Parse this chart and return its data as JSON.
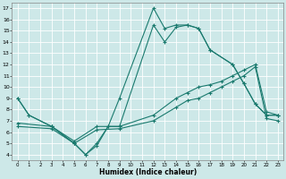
{
  "bg_color": "#cde8e8",
  "grid_color": "#b0d8d8",
  "line_color": "#1a7a6e",
  "xlim": [
    -0.5,
    23.5
  ],
  "ylim": [
    3.5,
    17.5
  ],
  "xticks": [
    0,
    1,
    2,
    3,
    4,
    5,
    6,
    7,
    8,
    9,
    10,
    11,
    12,
    13,
    14,
    15,
    16,
    17,
    18,
    19,
    20,
    21,
    22,
    23
  ],
  "yticks": [
    4,
    5,
    6,
    7,
    8,
    9,
    10,
    11,
    12,
    13,
    14,
    15,
    16,
    17
  ],
  "xlabel": "Humidex (Indice chaleur)",
  "lines": [
    {
      "x": [
        0,
        1,
        3,
        5,
        6,
        7,
        8,
        9,
        12,
        13,
        14,
        15,
        16,
        17,
        19,
        20,
        21,
        22,
        23
      ],
      "y": [
        9,
        7.5,
        6.5,
        5.0,
        4.0,
        4.8,
        6.5,
        9.0,
        17.0,
        15.2,
        15.5,
        15.5,
        15.2,
        13.3,
        12.0,
        10.3,
        8.5,
        7.5,
        7.5
      ]
    },
    {
      "x": [
        0,
        1,
        3,
        5,
        6,
        7,
        8,
        9,
        12,
        13,
        14,
        15,
        16,
        17,
        19,
        20,
        21,
        22,
        23
      ],
      "y": [
        9,
        7.5,
        6.5,
        5.0,
        4.0,
        5.0,
        6.5,
        6.5,
        15.5,
        14.0,
        15.3,
        15.5,
        15.2,
        13.3,
        12.0,
        10.3,
        8.5,
        7.5,
        7.5
      ]
    },
    {
      "x": [
        0,
        3,
        5,
        7,
        9,
        12,
        14,
        15,
        16,
        17,
        18,
        19,
        20,
        21,
        22,
        23
      ],
      "y": [
        6.8,
        6.5,
        5.2,
        6.5,
        6.5,
        7.5,
        9.0,
        9.5,
        10.0,
        10.2,
        10.5,
        11.0,
        11.5,
        12.0,
        7.8,
        7.5
      ]
    },
    {
      "x": [
        0,
        3,
        5,
        7,
        9,
        12,
        14,
        15,
        16,
        17,
        18,
        19,
        20,
        21,
        22,
        23
      ],
      "y": [
        6.5,
        6.3,
        5.0,
        6.2,
        6.3,
        7.0,
        8.2,
        8.8,
        9.0,
        9.5,
        10.0,
        10.5,
        11.0,
        11.8,
        7.2,
        7.0
      ]
    }
  ]
}
